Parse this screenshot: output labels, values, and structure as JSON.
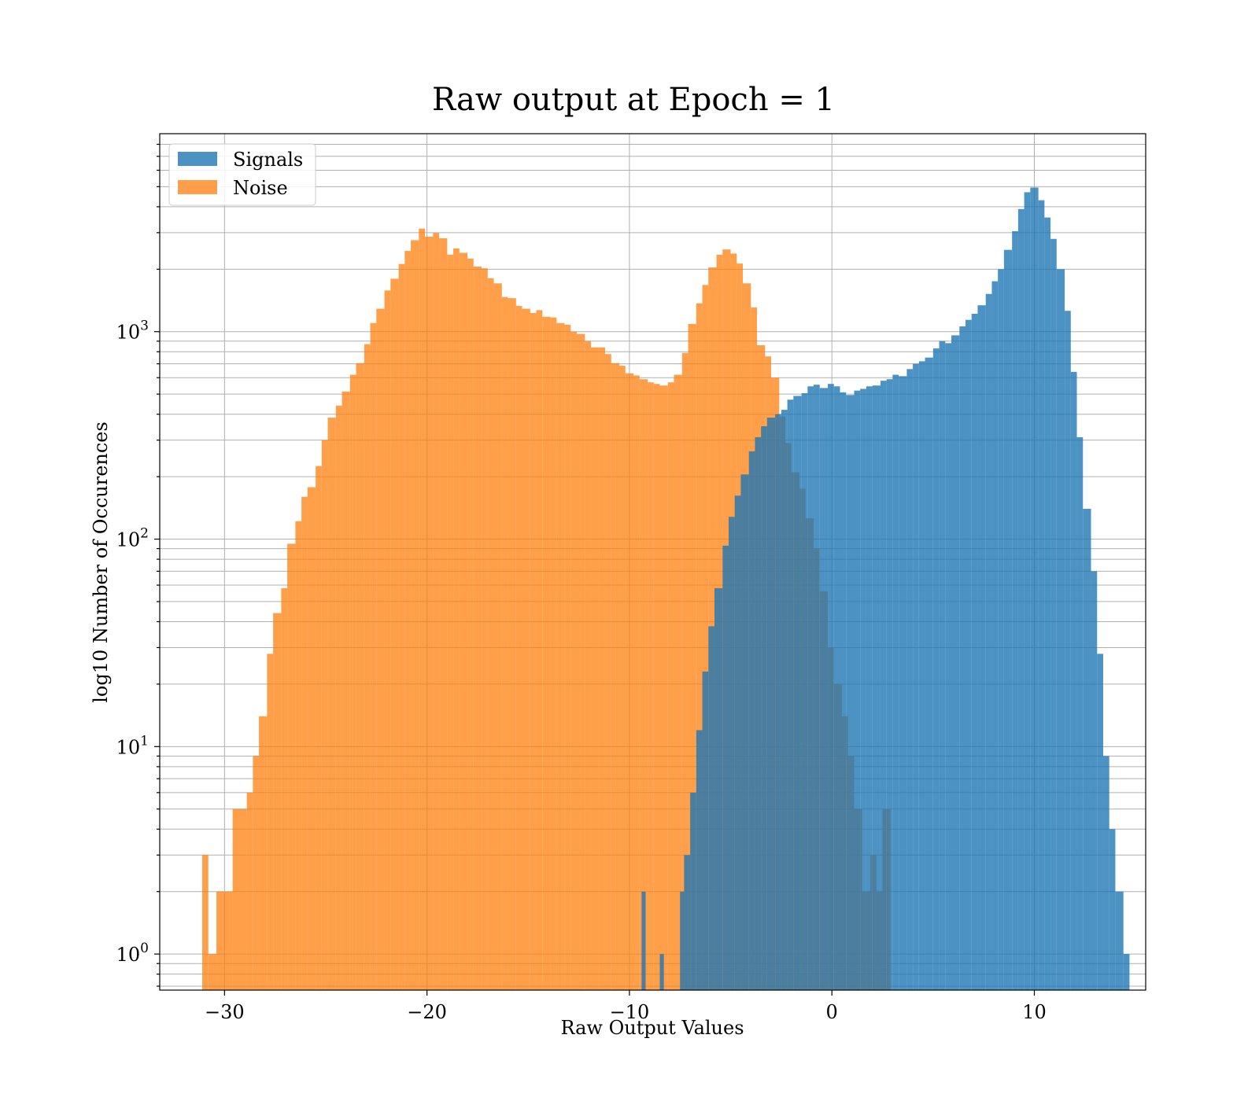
{
  "chart_data": {
    "type": "histogram",
    "title": "Raw output at Epoch = 1",
    "xlabel": "Raw Output Values",
    "ylabel": "log10 Number of Occurences",
    "xlim": [
      -33.2,
      15.5
    ],
    "ylim": [
      0.67,
      9000
    ],
    "yscale": "log",
    "grid": true,
    "legend_position": "top-left",
    "x_ticks": [
      {
        "value": -30,
        "label": "−30"
      },
      {
        "value": -20,
        "label": "−20"
      },
      {
        "value": -10,
        "label": "−10"
      },
      {
        "value": 0,
        "label": "0"
      },
      {
        "value": 10,
        "label": "10"
      }
    ],
    "y_ticks": [
      {
        "value": 1,
        "base": "10",
        "exp": "0"
      },
      {
        "value": 10,
        "base": "10",
        "exp": "1"
      },
      {
        "value": 100,
        "base": "10",
        "exp": "2"
      },
      {
        "value": 1000,
        "base": "10",
        "exp": "3"
      }
    ],
    "series": [
      {
        "name": "Noise",
        "color": "#ff7f0e",
        "opacity": 0.75,
        "bins": [
          [
            -31.1,
            -30.8,
            3
          ],
          [
            -30.8,
            -30.4,
            1
          ],
          [
            -30.4,
            -29.6,
            2
          ],
          [
            -29.6,
            -28.9,
            5
          ],
          [
            -28.9,
            -28.6,
            6
          ],
          [
            -28.6,
            -28.3,
            9
          ],
          [
            -28.3,
            -27.9,
            14
          ],
          [
            -27.9,
            -27.6,
            28
          ],
          [
            -27.6,
            -27.2,
            44
          ],
          [
            -27.2,
            -26.9,
            58
          ],
          [
            -26.9,
            -26.5,
            95
          ],
          [
            -26.5,
            -26.2,
            122
          ],
          [
            -26.2,
            -25.9,
            160
          ],
          [
            -25.9,
            -25.5,
            178
          ],
          [
            -25.5,
            -25.2,
            225
          ],
          [
            -25.2,
            -24.9,
            300
          ],
          [
            -24.9,
            -24.5,
            385
          ],
          [
            -24.5,
            -24.2,
            440
          ],
          [
            -24.2,
            -23.8,
            515
          ],
          [
            -23.8,
            -23.5,
            620
          ],
          [
            -23.5,
            -23.1,
            705
          ],
          [
            -23.1,
            -22.8,
            870
          ],
          [
            -22.8,
            -22.5,
            1100
          ],
          [
            -22.5,
            -22.1,
            1290
          ],
          [
            -22.1,
            -21.8,
            1580
          ],
          [
            -21.8,
            -21.4,
            1800
          ],
          [
            -21.4,
            -21.1,
            2120
          ],
          [
            -21.1,
            -20.8,
            2450
          ],
          [
            -20.8,
            -20.4,
            2760
          ],
          [
            -20.4,
            -20.1,
            3140
          ],
          [
            -20.1,
            -19.7,
            2870
          ],
          [
            -19.7,
            -19.4,
            2990
          ],
          [
            -19.4,
            -19.0,
            2820
          ],
          [
            -19.0,
            -18.7,
            2350
          ],
          [
            -18.7,
            -18.4,
            2520
          ],
          [
            -18.4,
            -18.0,
            2400
          ],
          [
            -18.0,
            -17.7,
            2250
          ],
          [
            -17.7,
            -17.3,
            2060
          ],
          [
            -17.3,
            -17.0,
            2020
          ],
          [
            -17.0,
            -16.7,
            1810
          ],
          [
            -16.7,
            -16.3,
            1710
          ],
          [
            -16.3,
            -16.0,
            1470
          ],
          [
            -16.0,
            -15.6,
            1450
          ],
          [
            -15.6,
            -15.3,
            1330
          ],
          [
            -15.3,
            -14.9,
            1290
          ],
          [
            -14.9,
            -14.6,
            1230
          ],
          [
            -14.6,
            -14.3,
            1270
          ],
          [
            -14.3,
            -13.9,
            1180
          ],
          [
            -13.9,
            -13.6,
            1170
          ],
          [
            -13.6,
            -13.2,
            1100
          ],
          [
            -13.2,
            -12.9,
            1080
          ],
          [
            -12.9,
            -12.6,
            1000
          ],
          [
            -12.6,
            -12.2,
            975
          ],
          [
            -12.2,
            -11.9,
            900
          ],
          [
            -11.9,
            -11.5,
            840
          ],
          [
            -11.5,
            -11.2,
            840
          ],
          [
            -11.2,
            -10.9,
            780
          ],
          [
            -10.9,
            -10.5,
            705
          ],
          [
            -10.5,
            -10.2,
            685
          ],
          [
            -10.2,
            -9.8,
            630
          ],
          [
            -9.8,
            -9.5,
            615
          ],
          [
            -9.5,
            -9.1,
            590
          ],
          [
            -9.1,
            -8.8,
            570
          ],
          [
            -8.8,
            -8.5,
            560
          ],
          [
            -8.5,
            -8.1,
            550
          ],
          [
            -8.1,
            -7.8,
            570
          ],
          [
            -7.8,
            -7.4,
            620
          ],
          [
            -7.4,
            -7.1,
            790
          ],
          [
            -7.1,
            -6.7,
            1090
          ],
          [
            -6.7,
            -6.4,
            1370
          ],
          [
            -6.4,
            -6.1,
            1680
          ],
          [
            -6.1,
            -5.7,
            2040
          ],
          [
            -5.7,
            -5.4,
            2350
          ],
          [
            -5.4,
            -5.0,
            2490
          ],
          [
            -5.0,
            -4.7,
            2380
          ],
          [
            -4.7,
            -4.4,
            2130
          ],
          [
            -4.4,
            -4.0,
            1710
          ],
          [
            -4.0,
            -3.7,
            1310
          ],
          [
            -3.7,
            -3.3,
            860
          ],
          [
            -3.3,
            -3.0,
            760
          ],
          [
            -3.0,
            -2.6,
            600
          ],
          [
            -2.6,
            -2.3,
            390
          ],
          [
            -2.3,
            -2.0,
            290
          ],
          [
            -2.0,
            -1.6,
            210
          ],
          [
            -1.6,
            -1.3,
            175
          ],
          [
            -1.3,
            -0.9,
            126
          ],
          [
            -0.9,
            -0.6,
            90
          ],
          [
            -0.6,
            -0.2,
            56
          ],
          [
            -0.2,
            0.1,
            30
          ],
          [
            0.1,
            0.5,
            20
          ],
          [
            0.5,
            0.8,
            14
          ],
          [
            0.8,
            1.1,
            9
          ],
          [
            1.1,
            1.5,
            5
          ],
          [
            1.5,
            1.9,
            2
          ],
          [
            1.9,
            2.2,
            3
          ],
          [
            2.2,
            2.5,
            2
          ],
          [
            2.5,
            2.9,
            5
          ]
        ]
      },
      {
        "name": "Signals",
        "color": "#1f77b4",
        "opacity": 0.8,
        "bins": [
          [
            -9.4,
            -9.2,
            2
          ],
          [
            -8.5,
            -8.3,
            1
          ],
          [
            -7.5,
            -7.3,
            2
          ],
          [
            -7.3,
            -7.0,
            3
          ],
          [
            -7.0,
            -6.7,
            6
          ],
          [
            -6.7,
            -6.4,
            12
          ],
          [
            -6.4,
            -6.1,
            23
          ],
          [
            -6.1,
            -5.8,
            38
          ],
          [
            -5.8,
            -5.4,
            58
          ],
          [
            -5.4,
            -5.1,
            93
          ],
          [
            -5.1,
            -4.8,
            128
          ],
          [
            -4.8,
            -4.5,
            162
          ],
          [
            -4.5,
            -4.1,
            205
          ],
          [
            -4.1,
            -3.8,
            265
          ],
          [
            -3.8,
            -3.5,
            310
          ],
          [
            -3.5,
            -3.2,
            350
          ],
          [
            -3.2,
            -2.8,
            385
          ],
          [
            -2.8,
            -2.5,
            400
          ],
          [
            -2.5,
            -2.2,
            420
          ],
          [
            -2.2,
            -1.9,
            470
          ],
          [
            -1.9,
            -1.5,
            490
          ],
          [
            -1.5,
            -1.2,
            505
          ],
          [
            -1.2,
            -0.9,
            545
          ],
          [
            -0.9,
            -0.6,
            555
          ],
          [
            -0.6,
            -0.2,
            535
          ],
          [
            -0.2,
            0.1,
            560
          ],
          [
            0.1,
            0.4,
            545
          ],
          [
            0.4,
            0.7,
            510
          ],
          [
            0.7,
            1.1,
            495
          ],
          [
            1.1,
            1.4,
            520
          ],
          [
            1.4,
            1.7,
            530
          ],
          [
            1.7,
            2.0,
            545
          ],
          [
            2.0,
            2.4,
            550
          ],
          [
            2.4,
            2.7,
            580
          ],
          [
            2.7,
            3.0,
            590
          ],
          [
            3.0,
            3.3,
            620
          ],
          [
            3.3,
            3.7,
            610
          ],
          [
            3.7,
            4.0,
            660
          ],
          [
            4.0,
            4.3,
            700
          ],
          [
            4.3,
            4.6,
            720
          ],
          [
            4.6,
            5.0,
            750
          ],
          [
            5.0,
            5.3,
            830
          ],
          [
            5.3,
            5.6,
            900
          ],
          [
            5.6,
            5.9,
            880
          ],
          [
            5.9,
            6.3,
            960
          ],
          [
            6.3,
            6.6,
            1060
          ],
          [
            6.6,
            6.9,
            1140
          ],
          [
            6.9,
            7.2,
            1220
          ],
          [
            7.2,
            7.6,
            1340
          ],
          [
            7.6,
            7.9,
            1520
          ],
          [
            7.9,
            8.2,
            1750
          ],
          [
            8.2,
            8.5,
            2000
          ],
          [
            8.5,
            8.9,
            2480
          ],
          [
            8.9,
            9.2,
            3050
          ],
          [
            9.2,
            9.5,
            3900
          ],
          [
            9.5,
            9.8,
            4700
          ],
          [
            9.8,
            10.2,
            4950
          ],
          [
            10.2,
            10.5,
            4300
          ],
          [
            10.5,
            10.8,
            3550
          ],
          [
            10.8,
            11.1,
            2800
          ],
          [
            11.1,
            11.5,
            2000
          ],
          [
            11.5,
            11.8,
            1260
          ],
          [
            11.8,
            12.1,
            640
          ],
          [
            12.1,
            12.4,
            310
          ],
          [
            12.4,
            12.8,
            140
          ],
          [
            12.8,
            13.1,
            70
          ],
          [
            13.1,
            13.4,
            28
          ],
          [
            13.4,
            13.7,
            9
          ],
          [
            13.7,
            14.0,
            4
          ],
          [
            14.0,
            14.4,
            2
          ],
          [
            14.4,
            14.7,
            1
          ]
        ]
      }
    ]
  }
}
